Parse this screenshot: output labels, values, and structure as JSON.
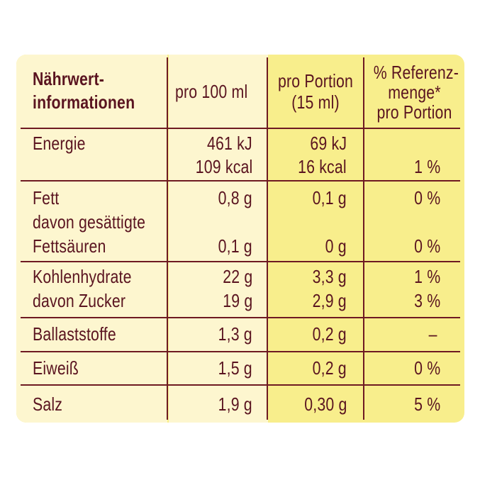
{
  "header": {
    "label_line1": "Nährwert-",
    "label_line2": "informationen",
    "per100": "pro 100 ml",
    "portion_line1": "pro Portion",
    "portion_line2": "(15 ml)",
    "ref_line1": "% Referenz-",
    "ref_line2": "menge*",
    "ref_line3": "pro Portion"
  },
  "rows": {
    "energie": {
      "label": "Energie",
      "per100_kj": "461 kJ",
      "per100_kcal": "109 kcal",
      "portion_kj": "69 kJ",
      "portion_kcal": "16 kcal",
      "ref": "1 %"
    },
    "fett": {
      "label": "Fett",
      "per100": "0,8 g",
      "portion": "0,1 g",
      "ref": "0 %"
    },
    "fettsaeuren": {
      "label_line1": "davon gesättigte",
      "label_line2": "Fettsäuren",
      "per100": "0,1 g",
      "portion": "0 g",
      "ref": "0 %"
    },
    "kohlenhydrate": {
      "label": "Kohlenhydrate",
      "per100": "22 g",
      "portion": "3,3 g",
      "ref": "1 %"
    },
    "zucker": {
      "label": "davon Zucker",
      "per100": "19 g",
      "portion": "2,9 g",
      "ref": "3 %"
    },
    "ballaststoffe": {
      "label": "Ballaststoffe",
      "per100": "1,3 g",
      "portion": "0,2 g",
      "ref": "–"
    },
    "eiweiss": {
      "label": "Eiweiß",
      "per100": "1,5 g",
      "portion": "0,2 g",
      "ref": "0 %"
    },
    "salz": {
      "label": "Salz",
      "per100": "1,9 g",
      "portion": "0,30 g",
      "ref": "5 %"
    }
  },
  "colors": {
    "text": "#5a1420",
    "rule": "#6e1a22",
    "cream": "#fdf6cf",
    "yellow": "#f8ee8c"
  }
}
